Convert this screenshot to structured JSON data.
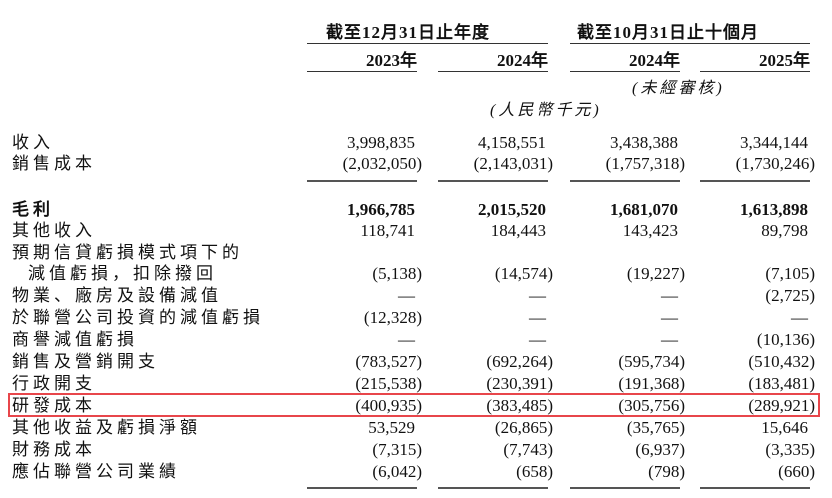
{
  "header": {
    "group1": "截至12月31日止年度",
    "group2": "截至10月31日止十個月",
    "years": [
      "2023年",
      "2024年",
      "2024年",
      "2025年"
    ],
    "unaudited": "(未經審核)",
    "unit": "(人民幣千元)"
  },
  "rows": [
    {
      "label": "收入",
      "values": [
        "3,998,835",
        "4,158,551",
        "3,438,388",
        "3,344,144"
      ]
    },
    {
      "label": "銷售成本",
      "values": [
        "(2,032,050)",
        "(2,143,031)",
        "(1,757,318)",
        "(1,730,246)"
      ]
    },
    {
      "label": "毛利",
      "bold": true,
      "values": [
        "1,966,785",
        "2,015,520",
        "1,681,070",
        "1,613,898"
      ]
    },
    {
      "label": "其他收入",
      "values": [
        "118,741",
        "184,443",
        "143,423",
        "89,798"
      ]
    },
    {
      "label": "預期信貸虧損模式項下的",
      "values": [
        "",
        "",
        "",
        ""
      ]
    },
    {
      "label": "減值虧損，扣除撥回",
      "indent": true,
      "values": [
        "(5,138)",
        "(14,574)",
        "(19,227)",
        "(7,105)"
      ]
    },
    {
      "label": "物業、廠房及設備減值",
      "values": [
        "—",
        "—",
        "—",
        "(2,725)"
      ]
    },
    {
      "label": "於聯營公司投資的減值虧損",
      "values": [
        "(12,328)",
        "—",
        "—",
        "—"
      ]
    },
    {
      "label": "商譽減值虧損",
      "values": [
        "—",
        "—",
        "—",
        "(10,136)"
      ]
    },
    {
      "label": "銷售及營銷開支",
      "values": [
        "(783,527)",
        "(692,264)",
        "(595,734)",
        "(510,432)"
      ]
    },
    {
      "label": "行政開支",
      "values": [
        "(215,538)",
        "(230,391)",
        "(191,368)",
        "(183,481)"
      ]
    },
    {
      "label": "研發成本",
      "highlighted": true,
      "values": [
        "(400,935)",
        "(383,485)",
        "(305,756)",
        "(289,921)"
      ]
    },
    {
      "label": "其他收益及虧損淨額",
      "values": [
        "53,529",
        "(26,865)",
        "(35,765)",
        "15,646"
      ]
    },
    {
      "label": "財務成本",
      "values": [
        "(7,315)",
        "(7,743)",
        "(6,937)",
        "(3,335)"
      ]
    },
    {
      "label": "應佔聯營公司業績",
      "values": [
        "(6,042)",
        "(658)",
        "(798)",
        "(660)"
      ]
    }
  ],
  "highlight_color": "#e8464b"
}
